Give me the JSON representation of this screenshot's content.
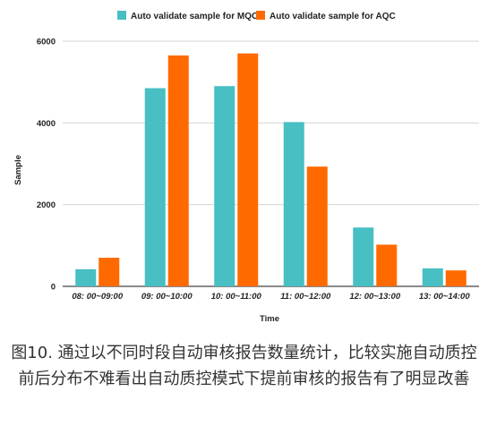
{
  "chart_data": {
    "type": "bar",
    "title": "",
    "xlabel": "Time",
    "ylabel": "Sample",
    "ylim": [
      0,
      6000
    ],
    "yticks": [
      0,
      2000,
      4000,
      6000
    ],
    "grid": true,
    "legend_position": "top",
    "categories": [
      "08: 00~09:00",
      "09: 00~10:00",
      "10: 00~11:00",
      "11: 00~12:00",
      "12: 00~13:00",
      "13: 00~14:00"
    ],
    "series": [
      {
        "name": "Auto validate sample for MQC",
        "color": "#47bfc3",
        "values": [
          420,
          4850,
          4900,
          4020,
          1440,
          440
        ]
      },
      {
        "name": "Auto validate sample for AQC",
        "color": "#ff6a00",
        "values": [
          700,
          5650,
          5700,
          2930,
          1020,
          390
        ]
      }
    ]
  },
  "caption": "图10. 通过以不同时段自动审核报告数量统计，比较实施自动质控前后分布不难看出自动质控模式下提前审核的报告有了明显改善"
}
